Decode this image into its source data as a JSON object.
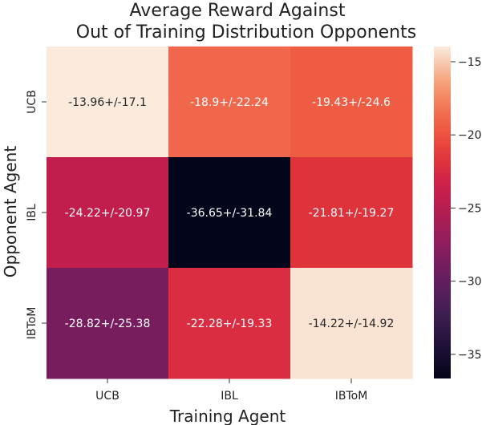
{
  "chart_data": {
    "type": "heatmap",
    "title_lines": [
      "Average Reward Against",
      "Out of Training Distribution Opponents"
    ],
    "xlabel": "Training Agent",
    "ylabel": "Opponent Agent",
    "x_categories": [
      "UCB",
      "IBL",
      "IBToM"
    ],
    "y_categories": [
      "UCB",
      "IBL",
      "IBToM"
    ],
    "values": [
      [
        -13.96,
        -18.9,
        -19.43
      ],
      [
        -24.22,
        -36.65,
        -21.81
      ],
      [
        -28.82,
        -22.28,
        -14.22
      ]
    ],
    "cell_labels": [
      [
        "-13.96+/-17.1",
        "-18.9+/-22.24",
        "-19.43+/-24.6"
      ],
      [
        "-24.22+/-20.97",
        "-36.65+/-31.84",
        "-21.81+/-19.27"
      ],
      [
        "-28.82+/-25.38",
        "-22.28+/-19.33",
        "-14.22+/-14.92"
      ]
    ],
    "colorbar": {
      "vmin": -36.65,
      "vmax": -13.96,
      "ticks": [
        -15,
        -20,
        -25,
        -30,
        -35
      ],
      "tick_labels": [
        "−15",
        "−20",
        "−25",
        "−30",
        "−35"
      ]
    },
    "colormap": "rocket",
    "grid": false,
    "legend": "colorbar-right"
  }
}
